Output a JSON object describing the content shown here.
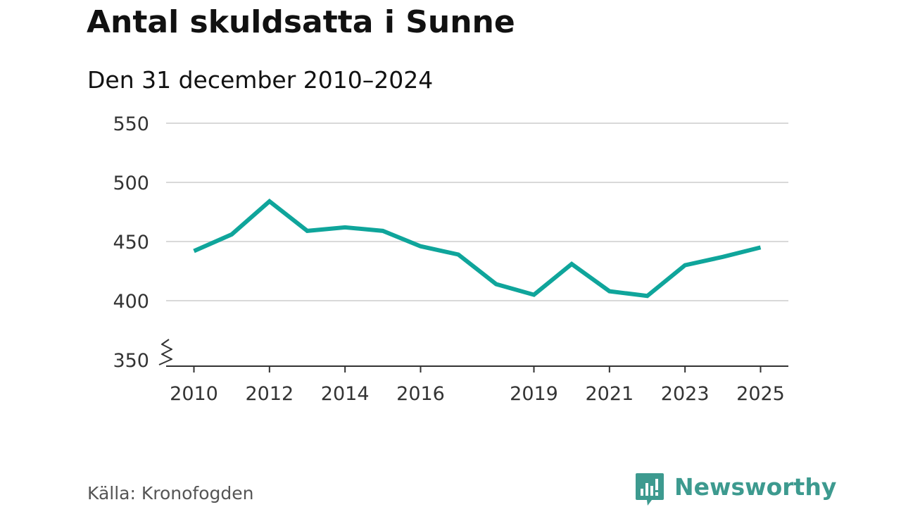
{
  "header": {
    "title": "Antal skuldsatta i Sunne",
    "subtitle": "Den 31 december 2010–2024"
  },
  "footer": {
    "source": "Källa: Kronofogden",
    "brand": "Newsworthy"
  },
  "colors": {
    "line": "#0fa59b",
    "grid": "#d9d9d9",
    "axis": "#333333",
    "brand": "#3d9a8f"
  },
  "chart_data": {
    "type": "line",
    "title": "Antal skuldsatta i Sunne",
    "subtitle": "Den 31 december 2010–2024",
    "xlabel": "",
    "ylabel": "",
    "x": [
      2010,
      2011,
      2012,
      2013,
      2014,
      2015,
      2016,
      2017,
      2018,
      2019,
      2020,
      2021,
      2022,
      2023,
      2024,
      2025
    ],
    "series": [
      {
        "name": "Antal skuldsatta",
        "values": [
          442,
          456,
          484,
          459,
          462,
          459,
          446,
          439,
          414,
          405,
          431,
          408,
          404,
          430,
          437,
          445
        ]
      }
    ],
    "xlim": [
      2010,
      2025
    ],
    "ylim": [
      350,
      550
    ],
    "y_ticks": [
      350,
      400,
      450,
      500,
      550
    ],
    "y_tick_labels": [
      "350",
      "400",
      "450",
      "500",
      "550"
    ],
    "x_ticks": [
      2010,
      2012,
      2014,
      2016,
      2019,
      2021,
      2023,
      2025
    ],
    "x_tick_labels": [
      "2010",
      "2012",
      "2014",
      "2016",
      "2019",
      "2021",
      "2023",
      "2025"
    ],
    "axis_break": true,
    "grid": true,
    "legend": "none"
  }
}
